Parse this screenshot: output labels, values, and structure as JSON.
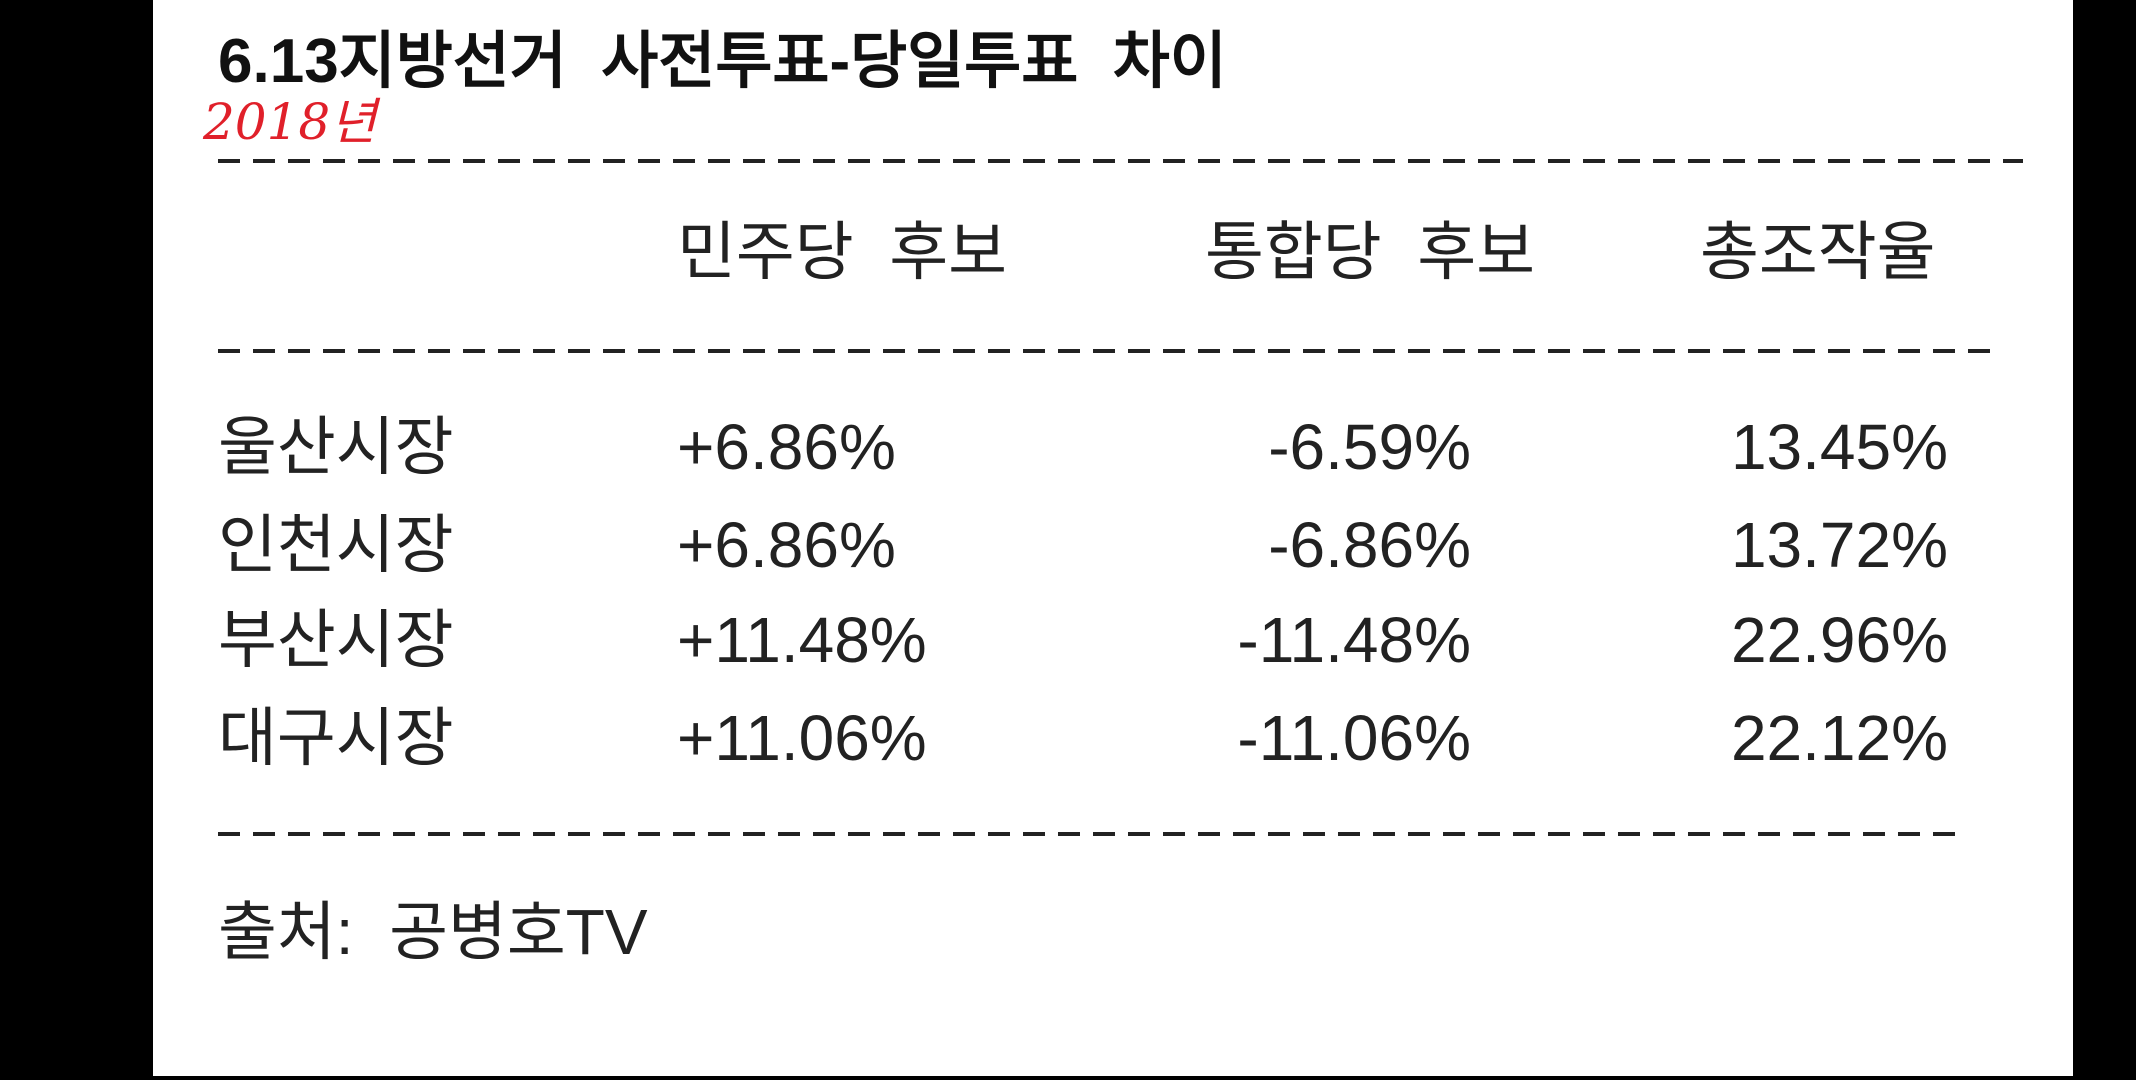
{
  "title": "6.13지방선거  사전투표-당일투표  차이",
  "annotation": "2018년",
  "table": {
    "headers": [
      "민주당  후보",
      "통합당  후보",
      "총조작율"
    ],
    "rows": [
      [
        "울산시장",
        "+6.86%",
        "-6.59%",
        "13.45%"
      ],
      [
        "인천시장",
        "+6.86%",
        "-6.86%",
        "13.72%"
      ],
      [
        "부산시장",
        "+11.48%",
        "-11.48%",
        "22.96%"
      ],
      [
        "대구시장",
        "+11.06%",
        "-11.06%",
        "22.12%"
      ]
    ]
  },
  "source": "출처:  공병호TV"
}
